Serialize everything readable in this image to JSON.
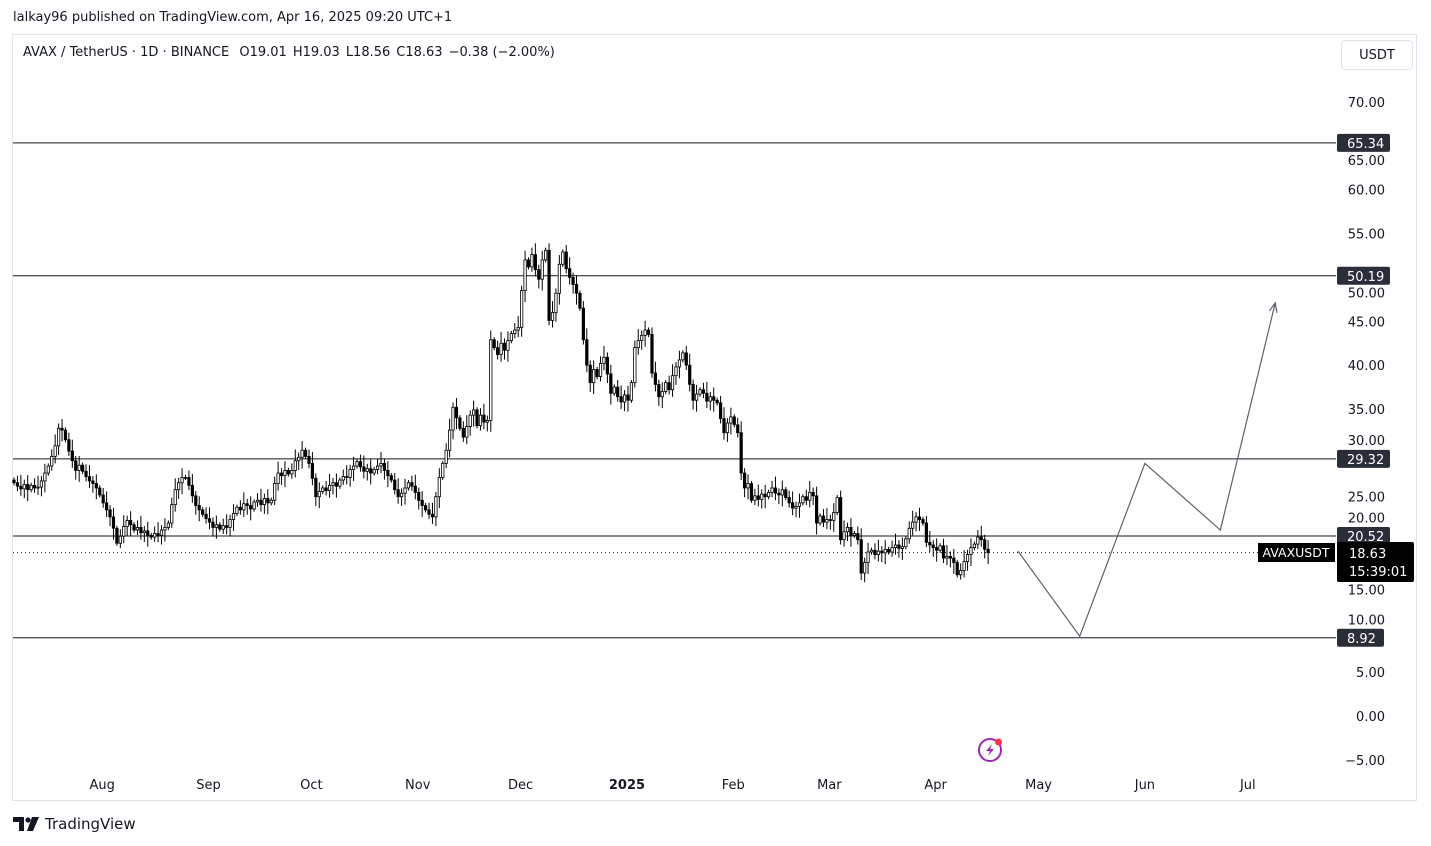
{
  "publish_line": "lalkay96 published on TradingView.com, Apr 16, 2025 09:20 UTC+1",
  "legend": {
    "symbol": "AVAX / TetherUS · 1D · BINANCE",
    "open": "O19.01",
    "high": "H19.03",
    "low": "L18.56",
    "close": "C18.63",
    "change": "−0.38 (−2.00%)"
  },
  "currency_button": "USDT",
  "price_tag": {
    "symbol": "AVAXUSDT",
    "price": "18.63",
    "countdown": "15:39:01"
  },
  "footer": {
    "brand": "TradingView",
    "logo_icon": "tradingview-logo-icon"
  },
  "colors": {
    "candle": "#000000",
    "level_line": "#2a2e39",
    "label_bg": "#2a2e39",
    "projection": "#5d606b",
    "alert_icon": "#9c27b0",
    "alert_dot": "#f23645"
  },
  "chart_data": {
    "type": "candlestick",
    "first_date": "2024-07-06",
    "ylim": [
      -7,
      75
    ],
    "y_ticks": [
      "70.00",
      "65.00",
      "60.00",
      "55.00",
      "50.00",
      "45.00",
      "40.00",
      "35.00",
      "30.00",
      "25.00",
      "20.00",
      "15.00",
      "10.00",
      "5.00",
      "0.00",
      "−5.00"
    ],
    "y_tick_values": [
      70,
      65,
      60,
      55,
      50,
      45,
      40,
      35,
      30,
      25,
      20,
      15,
      10,
      5,
      0,
      -5
    ],
    "x_ticks": [
      {
        "label": "Aug",
        "date": "2024-08-01",
        "bold": false
      },
      {
        "label": "Sep",
        "date": "2024-09-01",
        "bold": false
      },
      {
        "label": "Oct",
        "date": "2024-10-01",
        "bold": false
      },
      {
        "label": "Nov",
        "date": "2024-11-01",
        "bold": false
      },
      {
        "label": "Dec",
        "date": "2024-12-01",
        "bold": false
      },
      {
        "label": "2025",
        "date": "2025-01-01",
        "bold": true
      },
      {
        "label": "Feb",
        "date": "2025-02-01",
        "bold": false
      },
      {
        "label": "Mar",
        "date": "2025-03-01",
        "bold": false
      },
      {
        "label": "Apr",
        "date": "2025-04-01",
        "bold": false
      },
      {
        "label": "May",
        "date": "2025-05-01",
        "bold": false
      },
      {
        "label": "Jun",
        "date": "2025-06-01",
        "bold": false
      },
      {
        "label": "Jul",
        "date": "2025-07-01",
        "bold": false
      }
    ],
    "first_open": 26.9,
    "closes": [
      26.6,
      26.2,
      25.9,
      26.4,
      25.8,
      26.3,
      26.0,
      26.1,
      26.8,
      27.7,
      28.5,
      29.6,
      30.8,
      32.8,
      32.6,
      31.5,
      30.2,
      29.1,
      28.0,
      28.6,
      27.9,
      27.3,
      26.8,
      26.5,
      26.0,
      25.2,
      24.3,
      23.5,
      22.7,
      21.4,
      19.7,
      20.5,
      21.6,
      22.3,
      21.8,
      21.2,
      21.5,
      20.9,
      21.1,
      20.6,
      20.4,
      20.8,
      20.6,
      21.2,
      21.5,
      22.0,
      24.1,
      25.8,
      26.6,
      27.2,
      27.2,
      26.3,
      25.1,
      24.0,
      23.5,
      23.0,
      22.5,
      22.1,
      21.5,
      21.8,
      21.3,
      21.7,
      21.5,
      22.4,
      23.1,
      23.8,
      23.5,
      24.2,
      24.0,
      23.6,
      24.4,
      24.6,
      24.1,
      24.8,
      24.3,
      24.6,
      26.5,
      27.7,
      27.4,
      28.0,
      27.6,
      28.0,
      29.1,
      29.5,
      30.3,
      29.6,
      28.8,
      27.1,
      25.0,
      25.6,
      26.0,
      25.7,
      26.3,
      26.6,
      26.2,
      26.9,
      27.3,
      27.2,
      28.1,
      28.5,
      29.0,
      28.4,
      27.9,
      28.2,
      27.7,
      28.1,
      28.5,
      28.8,
      28.0,
      27.4,
      26.9,
      25.8,
      25.0,
      25.4,
      26.0,
      26.6,
      26.2,
      25.5,
      24.6,
      24.0,
      23.5,
      23.0,
      22.7,
      25.0,
      27.2,
      28.8,
      30.3,
      32.6,
      35.2,
      34.0,
      32.8,
      31.8,
      33.0,
      34.3,
      34.9,
      33.1,
      34.3,
      33.5,
      33.7,
      42.9,
      42.0,
      41.2,
      42.5,
      41.7,
      42.8,
      43.6,
      44.0,
      44.3,
      48.5,
      52.0,
      51.2,
      52.6,
      50.9,
      49.8,
      52.0,
      53.1,
      45.1,
      46.0,
      48.2,
      51.5,
      52.9,
      51.0,
      50.0,
      49.2,
      48.2,
      46.5,
      42.9,
      40.0,
      38.0,
      39.5,
      38.7,
      40.2,
      40.9,
      39.0,
      36.8,
      37.5,
      36.4,
      35.8,
      36.6,
      36.0,
      38.0,
      42.0,
      42.8,
      43.4,
      44.0,
      43.5,
      39.1,
      37.8,
      36.4,
      37.0,
      38.0,
      37.2,
      38.8,
      39.8,
      40.6,
      41.4,
      40.0,
      37.8,
      36.0,
      36.7,
      37.2,
      36.8,
      35.9,
      36.4,
      36.0,
      35.7,
      33.9,
      32.3,
      33.4,
      34.1,
      33.2,
      32.3,
      27.7,
      26.0,
      26.5,
      24.6,
      25.1,
      24.7,
      25.3,
      25.0,
      25.5,
      26.0,
      25.4,
      25.2,
      25.8,
      24.9,
      24.3,
      23.7,
      23.9,
      24.3,
      25.0,
      24.6,
      25.5,
      25.1,
      22.0,
      22.8,
      22.1,
      22.4,
      22.3,
      23.2,
      24.9,
      20.1,
      21.0,
      21.5,
      20.6,
      20.8,
      20.1,
      16.3,
      17.5,
      18.7,
      18.9,
      18.4,
      18.8,
      18.6,
      19.0,
      18.7,
      19.2,
      19.5,
      19.1,
      19.3,
      20.2,
      21.4,
      22.1,
      22.7,
      22.4,
      22.0,
      19.8,
      19.5,
      19.2,
      18.9,
      19.4,
      18.0,
      18.2,
      18.0,
      17.5,
      16.1,
      16.6,
      17.6,
      18.4,
      19.2,
      19.6,
      20.4,
      20.1,
      19.01,
      18.63
    ],
    "last_price": 18.63,
    "horizontal_levels": [
      {
        "value": 65.34,
        "label": "65.34"
      },
      {
        "value": 50.19,
        "label": "50.19"
      },
      {
        "value": 29.32,
        "label": "29.32"
      },
      {
        "value": 20.52,
        "label": "20.52"
      },
      {
        "value": 8.92,
        "label": "8.92"
      }
    ],
    "projection_path": [
      {
        "date": "2025-04-25",
        "price": 18.8
      },
      {
        "date": "2025-05-13",
        "price": 9.1
      },
      {
        "date": "2025-06-01",
        "price": 28.8
      },
      {
        "date": "2025-06-23",
        "price": 21.2
      },
      {
        "date": "2025-07-09",
        "price": 47.1
      }
    ]
  }
}
